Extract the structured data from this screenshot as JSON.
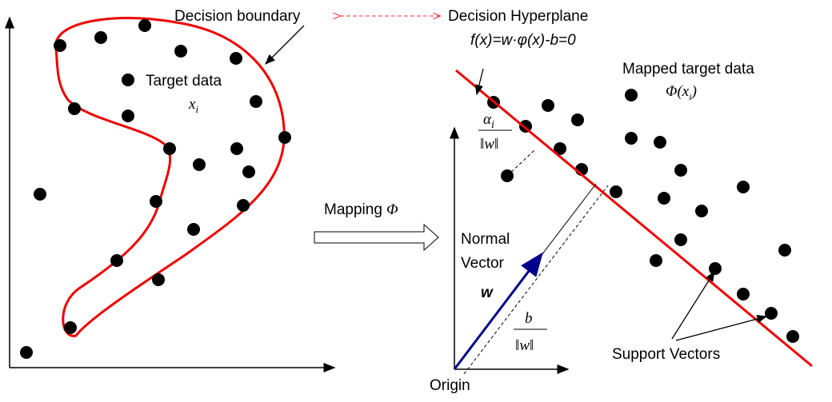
{
  "left_panel": {
    "boundary_label": "Decision boundary",
    "target_label": "Target data",
    "target_symbol": {
      "base": "x",
      "sub": "i"
    }
  },
  "link_label": "Decision Hyperplane",
  "mapping": {
    "label": "Mapping",
    "symbol": "Φ"
  },
  "right_panel": {
    "equation": "f(x)=w·φ(x)-b=0",
    "mapped_label": "Mapped target data",
    "mapped_symbol": {
      "base": "Φ(x",
      "sub": "i",
      "close": ")"
    },
    "alpha_fraction": {
      "numerator": {
        "base": "α",
        "sub": "i"
      },
      "denominator": "‖w‖"
    },
    "normal_vector": [
      "Normal",
      "Vector"
    ],
    "w_label": "w",
    "offset_fraction": {
      "numerator": "b",
      "denominator": "‖w‖"
    },
    "origin_label": "Origin",
    "support_label": "Support Vectors"
  }
}
